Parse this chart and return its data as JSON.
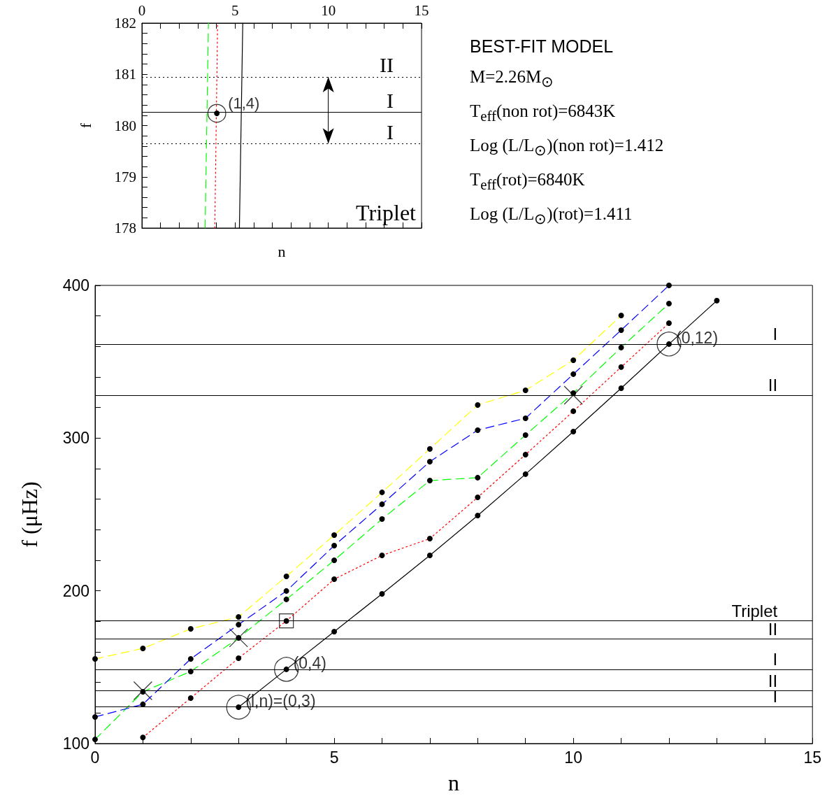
{
  "chart_data": [
    {
      "type": "line",
      "xlabel": "n",
      "ylabel": "f",
      "xlim": [
        0,
        15
      ],
      "ylim": [
        178,
        182
      ],
      "xticks": [
        0,
        {
          "value": 1,
          "label": null
        },
        {
          "value": 2,
          "label": null
        },
        {
          "value": 3,
          "label": null
        },
        {
          "value": 4,
          "label": null
        },
        5,
        {
          "value": 6,
          "label": null
        },
        {
          "value": 7,
          "label": null
        },
        {
          "value": 8,
          "label": null
        },
        {
          "value": 9,
          "label": null
        },
        10,
        {
          "value": 11,
          "label": null
        },
        {
          "value": 12,
          "label": null
        },
        {
          "value": 13,
          "label": null
        },
        {
          "value": 14,
          "label": null
        },
        15
      ],
      "yticks": [
        178,
        {
          "value": 178.2,
          "label": null
        },
        {
          "value": 178.4,
          "label": null
        },
        {
          "value": 178.6,
          "label": null
        },
        {
          "value": 178.8,
          "label": null
        },
        179,
        {
          "value": 179.2,
          "label": null
        },
        {
          "value": 179.4,
          "label": null
        },
        {
          "value": 179.6,
          "label": null
        },
        {
          "value": 179.8,
          "label": null
        },
        180,
        {
          "value": 180.2,
          "label": null
        },
        {
          "value": 180.4,
          "label": null
        },
        {
          "value": 180.6,
          "label": null
        },
        {
          "value": 180.8,
          "label": null
        },
        181,
        {
          "value": 181.2,
          "label": null
        },
        {
          "value": 181.4,
          "label": null
        },
        {
          "value": 181.6,
          "label": null
        },
        {
          "value": 181.8,
          "label": null
        },
        182
      ],
      "series": [
        {
          "color": "#00ff00",
          "line_style": "dashed",
          "marker": "none",
          "x": [
            3.39,
            3.57
          ],
          "values": [
            178,
            182
          ]
        },
        {
          "color": "#ff0000",
          "line_style": "dotted",
          "marker": "none",
          "x": [
            3.91,
            4.06
          ],
          "values": [
            178,
            182
          ]
        },
        {
          "color": "#000000",
          "line_style": "solid",
          "marker": "none",
          "x": [
            5.23,
            5.41
          ],
          "values": [
            178,
            182
          ]
        },
        {
          "color": "#000000",
          "marker": "circle",
          "x": [
            4.02
          ],
          "values": [
            180.24
          ]
        },
        {
          "type": "scatter",
          "color": "#000000",
          "marker": "circle",
          "x": [
            4.02
          ],
          "values": [
            180.24
          ]
        }
      ],
      "ref_lines": [
        {
          "axis": "y",
          "value": 180.95,
          "label": "II",
          "line_style": "dotted",
          "color": "#000000"
        },
        {
          "axis": "y",
          "value": 180.26,
          "label": "I",
          "line_style": "solid",
          "color": "#000000"
        },
        {
          "axis": "y",
          "value": 179.65,
          "label": "I",
          "line_style": "dotted",
          "color": "#000000"
        }
      ],
      "annotations": [
        {
          "text": "(1,4)",
          "x": 4.02,
          "y": 180.24
        },
        "Triplet"
      ]
    },
    {
      "type": "other",
      "title": "BEST-FIT MODEL",
      "annotations": [
        "M=2.26M$_{⊙}$",
        "T$_{eff}$(non rot)=6843K",
        "Log (L/L$_{⊙}$)(non rot)=1.412",
        "T$_{eff}$(rot)=6840K",
        "Log (L/L$_{⊙}$)(rot)=1.411"
      ]
    },
    {
      "type": "line",
      "xlabel": "n",
      "ylabel": "f (μHz)",
      "xlim": [
        0,
        15
      ],
      "ylim": [
        100,
        400
      ],
      "xticks": [
        0,
        {
          "value": 1,
          "label": null
        },
        {
          "value": 2,
          "label": null
        },
        {
          "value": 3,
          "label": null
        },
        {
          "value": 4,
          "label": null
        },
        5,
        {
          "value": 6,
          "label": null
        },
        {
          "value": 7,
          "label": null
        },
        {
          "value": 8,
          "label": null
        },
        {
          "value": 9,
          "label": null
        },
        10,
        {
          "value": 11,
          "label": null
        },
        {
          "value": 12,
          "label": null
        },
        {
          "value": 13,
          "label": null
        },
        {
          "value": 14,
          "label": null
        },
        15
      ],
      "yticks": [
        100,
        {
          "value": 120,
          "label": null
        },
        {
          "value": 140,
          "label": null
        },
        {
          "value": 160,
          "label": null
        },
        {
          "value": 180,
          "label": null
        },
        200,
        {
          "value": 220,
          "label": null
        },
        {
          "value": 240,
          "label": null
        },
        {
          "value": 260,
          "label": null
        },
        {
          "value": 280,
          "label": null
        },
        300,
        {
          "value": 320,
          "label": null
        },
        {
          "value": 340,
          "label": null
        },
        {
          "value": 360,
          "label": null
        },
        {
          "value": 380,
          "label": null
        },
        400
      ],
      "marker": "circle",
      "series": [
        {
          "color": "#000000",
          "line_style": "solid",
          "x": [
            3,
            4,
            5,
            6,
            7,
            8,
            9,
            10,
            11,
            12,
            13
          ],
          "values": [
            123.8,
            148.6,
            173.3,
            198,
            223.2,
            249.3,
            276.4,
            304.3,
            332.7,
            361.6,
            390
          ]
        },
        {
          "color": "#ff0000",
          "line_style": "dotted",
          "x": [
            1,
            2,
            3,
            4,
            5,
            6,
            7,
            8,
            9,
            10,
            11,
            12
          ],
          "values": [
            104,
            129.8,
            155.9,
            180.3,
            207.6,
            223.2,
            234.2,
            261.2,
            289.2,
            317.6,
            346.5,
            375.3
          ]
        },
        {
          "color": "#00ff00",
          "line_style": "dashed",
          "x": [
            0,
            1,
            2,
            3,
            4,
            5,
            6,
            7,
            8,
            9,
            10,
            11,
            12
          ],
          "values": [
            102.7,
            133.9,
            147.2,
            169.2,
            194.4,
            220,
            247,
            272.2,
            274.1,
            302,
            329.5,
            359.3,
            388.1
          ]
        },
        {
          "color": "#0000ff",
          "line_style": "dashed",
          "x": [
            0,
            1,
            2,
            3,
            4,
            5,
            6,
            7,
            8,
            9,
            10,
            11,
            12
          ],
          "values": [
            117.4,
            125.7,
            155.4,
            177.9,
            199.9,
            229.6,
            256.7,
            284.6,
            305.2,
            313,
            341.9,
            370.7,
            400
          ]
        },
        {
          "color": "#ffff00",
          "line_style": "dashed",
          "x": [
            0,
            1,
            2,
            3,
            4,
            5,
            6,
            7,
            8,
            9,
            10,
            11
          ],
          "values": [
            155.4,
            162.3,
            175.1,
            182.9,
            209.5,
            236.5,
            264.5,
            292.9,
            321.7,
            331.3,
            351,
            380.3
          ]
        },
        {
          "type": "scatter",
          "color": "#000000",
          "marker": "circle",
          "x": [
            3,
            4,
            12
          ],
          "values": [
            123.8,
            148.6,
            361.6
          ]
        },
        {
          "type": "scatter",
          "color": "#000000",
          "marker": "square",
          "x": [
            4
          ],
          "values": [
            180.3
          ]
        },
        {
          "type": "scatter",
          "color": "#000000",
          "marker": "cross",
          "x": [
            1,
            3,
            10
          ],
          "values": [
            134.6,
            169.2,
            328.1
          ]
        }
      ],
      "ref_lines": [
        {
          "axis": "y",
          "value": 361.6,
          "label": "I"
        },
        {
          "axis": "y",
          "value": 328.1,
          "label": "II"
        },
        {
          "axis": "y",
          "value": 180.3,
          "label": "Triplet"
        },
        {
          "axis": "y",
          "value": 168.7,
          "label": "II"
        },
        {
          "axis": "y",
          "value": 148.6,
          "label": "I"
        },
        {
          "axis": "y",
          "value": 134.8,
          "label": "II"
        },
        {
          "axis": "y",
          "value": 124.3,
          "label": "I"
        }
      ],
      "annotations": [
        {
          "text": "(0,12)",
          "x": 12,
          "y": 361.6
        },
        {
          "text": "(0,4)",
          "x": 4,
          "y": 148.6
        },
        {
          "text": "(l,n)=(0,3)",
          "x": 3,
          "y": 123.8
        }
      ]
    }
  ]
}
